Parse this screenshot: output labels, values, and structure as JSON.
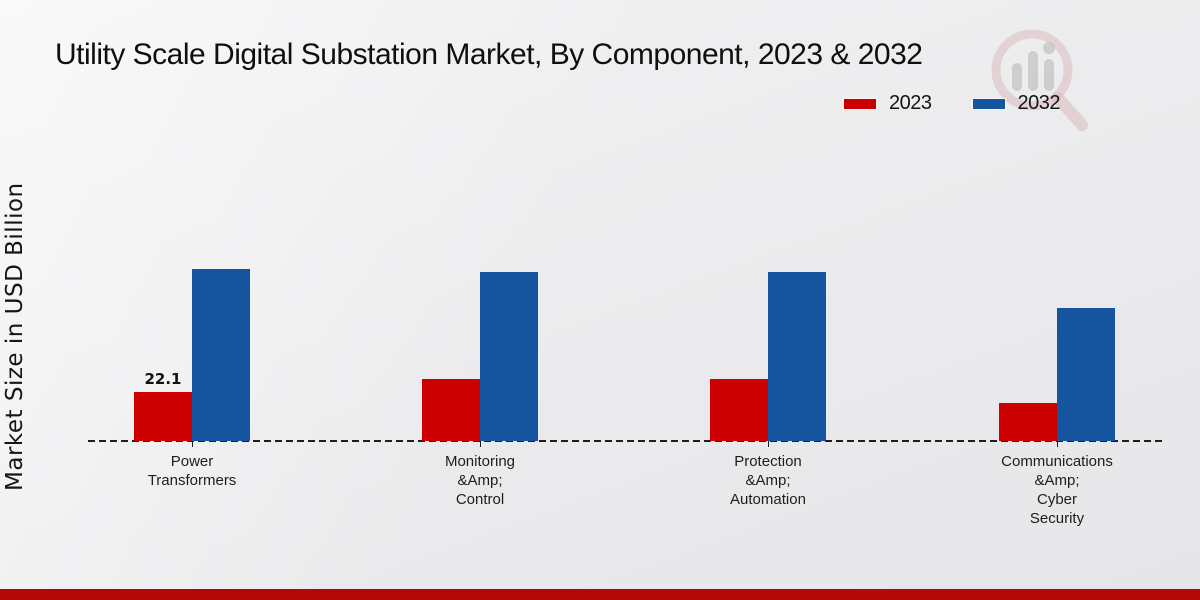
{
  "page": {
    "title": "Utility Scale Digital Substation Market, By Component, 2023 & 2032",
    "footer_color": "#b30707"
  },
  "legend": {
    "position": "top-right",
    "items": [
      {
        "label": "2023",
        "color": "#cc0000"
      },
      {
        "label": "2032",
        "color": "#15549e"
      }
    ]
  },
  "watermark": {
    "name": "market-research-magnifier-logo"
  },
  "chart_data": {
    "type": "bar",
    "title": "Utility Scale Digital Substation Market, By Component, 2023 & 2032",
    "xlabel": "",
    "ylabel": "Market Size in USD Billion",
    "categories": [
      "Power\nTransformers",
      "Monitoring\n&Amp;\nControl",
      "Protection\n&Amp;\nAutomation",
      "Communications\n&Amp;\nCyber\nSecurity"
    ],
    "series": [
      {
        "name": "2023",
        "color": "#cc0000",
        "values": [
          22.1,
          28.0,
          28.0,
          17.1
        ]
      },
      {
        "name": "2032",
        "color": "#15549e",
        "values": [
          77.6,
          76.2,
          76.2,
          60.0
        ]
      }
    ],
    "data_labels": [
      {
        "series": "2023",
        "category_index": 0,
        "text": "22.1"
      }
    ],
    "ylim": [
      0,
      80
    ],
    "grid": false,
    "baseline_style": "dashed",
    "legend_position": "top-right"
  }
}
